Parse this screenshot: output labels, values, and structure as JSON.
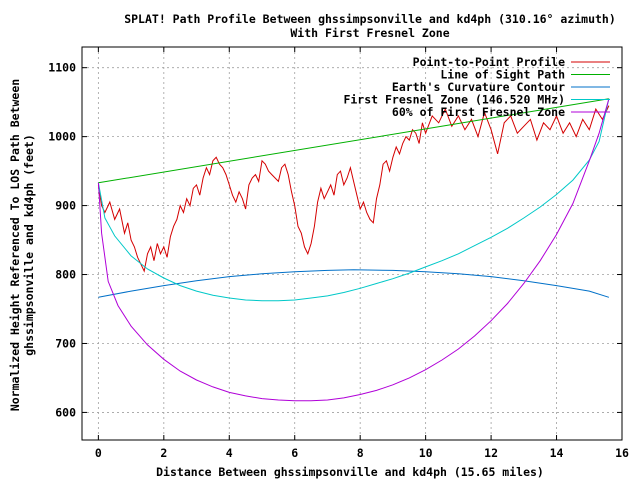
{
  "chart_data": {
    "type": "line",
    "title": "SPLAT! Path Profile Between ghssimpsonville and kd4ph (310.16° azimuth)",
    "subtitle": "With First Fresnel Zone",
    "xlabel": "Distance Between ghssimpsonville and kd4ph (15.65 miles)",
    "ylabel_lines": [
      "Normalized Height Referenced To LOS Path Between",
      "ghssimpsonville and kd4ph (feet)"
    ],
    "xlim": [
      -0.5,
      16
    ],
    "ylim": [
      560,
      1130
    ],
    "xticks": [
      0,
      2,
      4,
      6,
      8,
      10,
      12,
      14,
      16
    ],
    "yticks": [
      600,
      700,
      800,
      900,
      1000,
      1100
    ],
    "grid": true,
    "legend_position": "top-right",
    "colors": {
      "profile": "#d40000",
      "los": "#00b000",
      "curvature": "#0070c8",
      "fresnel": "#00c8c8",
      "fresnel60": "#b000d8"
    },
    "series": [
      {
        "name": "Point-to-Point Profile",
        "color_key": "profile",
        "x": [
          0,
          0.1,
          0.2,
          0.35,
          0.5,
          0.65,
          0.8,
          0.9,
          1.0,
          1.1,
          1.2,
          1.3,
          1.4,
          1.5,
          1.6,
          1.7,
          1.8,
          1.9,
          2.0,
          2.1,
          2.2,
          2.3,
          2.4,
          2.5,
          2.6,
          2.7,
          2.8,
          2.9,
          3.0,
          3.1,
          3.2,
          3.3,
          3.4,
          3.5,
          3.6,
          3.7,
          3.8,
          3.9,
          4.0,
          4.1,
          4.2,
          4.3,
          4.4,
          4.5,
          4.6,
          4.7,
          4.8,
          4.9,
          5.0,
          5.1,
          5.2,
          5.3,
          5.4,
          5.5,
          5.6,
          5.7,
          5.8,
          5.9,
          6.0,
          6.1,
          6.2,
          6.3,
          6.4,
          6.5,
          6.6,
          6.7,
          6.8,
          6.9,
          7.0,
          7.1,
          7.2,
          7.3,
          7.4,
          7.5,
          7.6,
          7.7,
          7.8,
          7.9,
          8.0,
          8.1,
          8.2,
          8.3,
          8.4,
          8.5,
          8.6,
          8.7,
          8.8,
          8.9,
          9.0,
          9.1,
          9.2,
          9.3,
          9.4,
          9.5,
          9.6,
          9.7,
          9.8,
          9.9,
          10.0,
          10.2,
          10.4,
          10.6,
          10.8,
          11.0,
          11.2,
          11.4,
          11.6,
          11.8,
          12.0,
          12.2,
          12.4,
          12.6,
          12.8,
          13.0,
          13.2,
          13.4,
          13.6,
          13.8,
          14.0,
          14.2,
          14.4,
          14.6,
          14.8,
          15.0,
          15.2,
          15.4,
          15.6
        ],
        "y": [
          930,
          900,
          890,
          905,
          880,
          895,
          860,
          875,
          850,
          840,
          825,
          815,
          805,
          830,
          840,
          820,
          845,
          830,
          840,
          825,
          855,
          870,
          880,
          900,
          890,
          910,
          900,
          925,
          930,
          915,
          940,
          955,
          945,
          965,
          970,
          960,
          955,
          945,
          930,
          915,
          905,
          920,
          910,
          895,
          930,
          940,
          945,
          935,
          965,
          960,
          950,
          945,
          940,
          935,
          955,
          960,
          945,
          920,
          900,
          870,
          860,
          840,
          830,
          845,
          870,
          905,
          925,
          910,
          920,
          930,
          915,
          945,
          950,
          930,
          940,
          955,
          935,
          915,
          895,
          905,
          890,
          880,
          875,
          910,
          930,
          960,
          965,
          950,
          970,
          985,
          975,
          990,
          1000,
          995,
          1010,
          1005,
          990,
          1020,
          1005,
          1030,
          1020,
          1040,
          1015,
          1030,
          1010,
          1025,
          1000,
          1035,
          1010,
          975,
          1020,
          1030,
          1005,
          1015,
          1025,
          995,
          1020,
          1010,
          1030,
          1005,
          1020,
          1000,
          1025,
          1010,
          1040,
          1025,
          1045
        ]
      },
      {
        "name": "Line of Sight Path",
        "color_key": "los",
        "x": [
          0,
          15.6
        ],
        "y": [
          933,
          1055
        ]
      },
      {
        "name": "Earth's Curvature Contour",
        "color_key": "curvature",
        "x": [
          0,
          1,
          2,
          3,
          4,
          5,
          6,
          7,
          7.8,
          9,
          10,
          11,
          12,
          13,
          14,
          15,
          15.6
        ],
        "y": [
          767,
          776,
          784,
          791,
          797,
          801,
          804,
          806,
          807,
          806,
          804,
          801,
          797,
          791,
          784,
          776,
          767
        ]
      },
      {
        "name": "First Fresnel Zone (146.520 MHz)",
        "color_key": "fresnel",
        "x": [
          0,
          0.2,
          0.5,
          1,
          1.5,
          2,
          2.5,
          3,
          3.5,
          4,
          4.5,
          5,
          5.5,
          6,
          6.5,
          7,
          7.5,
          8,
          8.5,
          9,
          9.5,
          10,
          10.5,
          11,
          11.5,
          12,
          12.5,
          13,
          13.5,
          14,
          14.5,
          15,
          15.3,
          15.6
        ],
        "y": [
          933,
          882,
          856,
          827,
          808,
          795,
          784,
          776,
          770,
          766,
          763,
          762,
          762,
          763,
          766,
          769,
          774,
          780,
          787,
          794,
          802,
          811,
          820,
          830,
          842,
          854,
          867,
          882,
          898,
          916,
          937,
          966,
          993,
          1055
        ]
      },
      {
        "name": "60% of First Fresnel Zone",
        "color_key": "fresnel60",
        "x": [
          0,
          0.1,
          0.3,
          0.6,
          1,
          1.5,
          2,
          2.5,
          3,
          3.5,
          4,
          4.5,
          5,
          5.5,
          6,
          6.5,
          7,
          7.5,
          8,
          8.5,
          9,
          9.5,
          10,
          10.5,
          11,
          11.5,
          12,
          12.5,
          13,
          13.5,
          14,
          14.5,
          15,
          15.3,
          15.6
        ],
        "y": [
          933,
          860,
          790,
          755,
          725,
          698,
          677,
          660,
          647,
          637,
          629,
          624,
          620,
          618,
          617,
          617,
          618,
          621,
          626,
          632,
          640,
          650,
          662,
          676,
          692,
          711,
          733,
          758,
          787,
          820,
          858,
          903,
          965,
          1005,
          1055
        ]
      }
    ]
  }
}
